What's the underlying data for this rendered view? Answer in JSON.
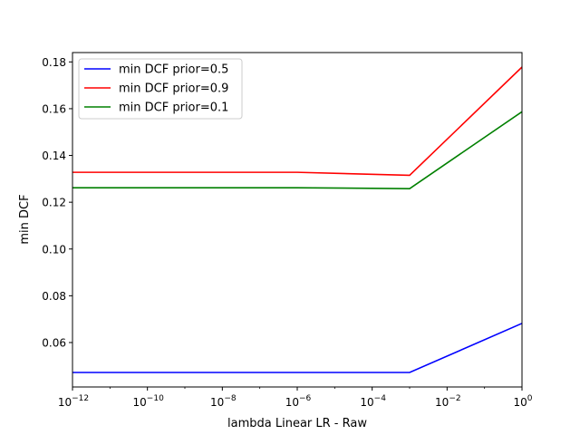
{
  "chart_data": {
    "type": "line",
    "title": "",
    "xlabel": "lambda Linear LR - Raw",
    "ylabel": "min DCF",
    "xscale": "log",
    "xlim": [
      1e-12,
      1
    ],
    "ylim": [
      0.041,
      0.184
    ],
    "grid": false,
    "legend_position": "top-left",
    "x": [
      1e-12,
      1e-06,
      0.001,
      1
    ],
    "x_ticks": [
      {
        "exp": -12,
        "base": "10",
        "sup": "−12"
      },
      {
        "exp": -10,
        "base": "10",
        "sup": "−10"
      },
      {
        "exp": -8,
        "base": "10",
        "sup": "−8"
      },
      {
        "exp": -6,
        "base": "10",
        "sup": "−6"
      },
      {
        "exp": -4,
        "base": "10",
        "sup": "−4"
      },
      {
        "exp": -2,
        "base": "10",
        "sup": "−2"
      },
      {
        "exp": 0,
        "base": "10",
        "sup": "0"
      }
    ],
    "y_ticks": [
      0.06,
      0.08,
      0.1,
      0.12,
      0.14,
      0.16,
      0.18
    ],
    "y_tick_labels": [
      "0.06",
      "0.08",
      "0.10",
      "0.12",
      "0.14",
      "0.16",
      "0.18"
    ],
    "series": [
      {
        "name": "min DCF prior=0.5",
        "color": "#0000ff",
        "values": [
          0.0472,
          0.0472,
          0.0472,
          0.0682
        ]
      },
      {
        "name": "min DCF prior=0.9",
        "color": "#ff0000",
        "values": [
          0.1328,
          0.1328,
          0.1315,
          0.1778
        ]
      },
      {
        "name": "min DCF prior=0.1",
        "color": "#008000",
        "values": [
          0.1262,
          0.1262,
          0.1258,
          0.1587
        ]
      }
    ]
  }
}
